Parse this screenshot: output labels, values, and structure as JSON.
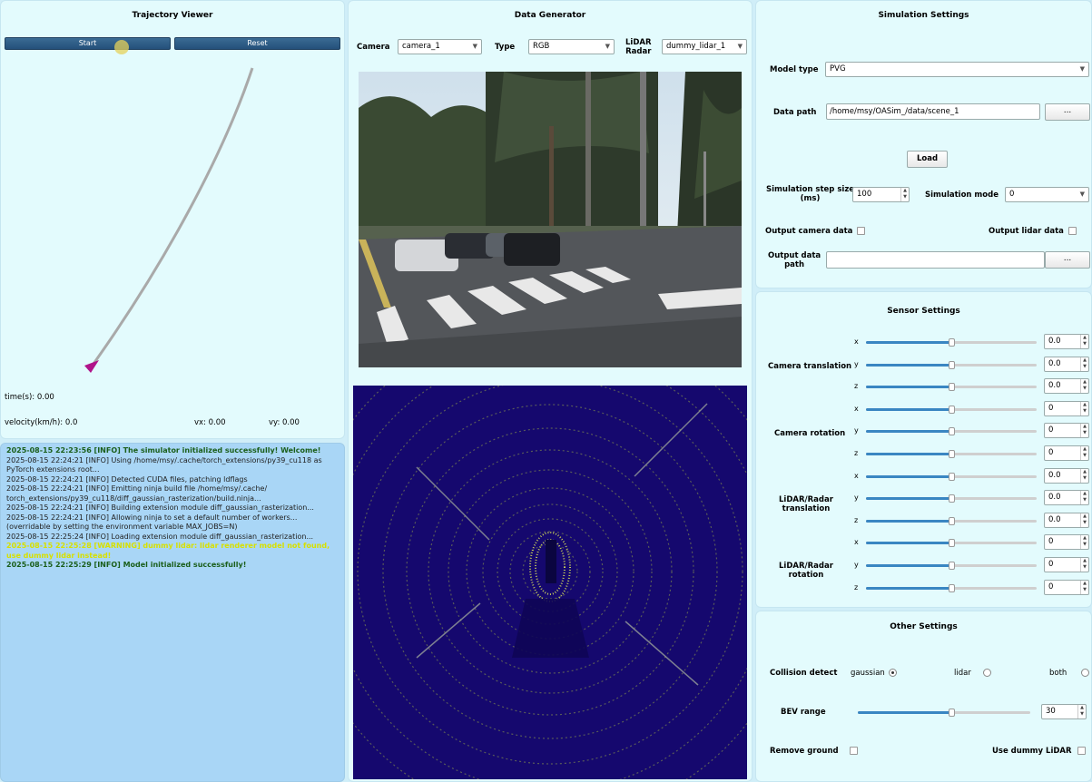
{
  "trajectory": {
    "title": "Trajectory Viewer",
    "start_label": "Start",
    "reset_label": "Reset",
    "time": "time(s): 0.00",
    "velocity": "velocity(km/h): 0.0",
    "vx": "vx: 0.00",
    "vy": "vy: 0.00"
  },
  "log": {
    "lines": [
      {
        "cls": "ok",
        "text": "2025-08-15 22:23:56 [INFO] The simulator initialized successfully! Welcome!"
      },
      {
        "cls": "",
        "text": "2025-08-15 22:24:21 [INFO] Using /home/msy/.cache/torch_extensions/py39_cu118 as PyTorch extensions root..."
      },
      {
        "cls": "",
        "text": "2025-08-15 22:24:21 [INFO] Detected CUDA files, patching ldflags"
      },
      {
        "cls": "",
        "text": "2025-08-15 22:24:21 [INFO] Emitting ninja build file /home/msy/.cache/ torch_extensions/py39_cu118/diff_gaussian_rasterization/build.ninja..."
      },
      {
        "cls": "",
        "text": "2025-08-15 22:24:21 [INFO] Building extension module diff_gaussian_rasterization..."
      },
      {
        "cls": "",
        "text": "2025-08-15 22:24:21 [INFO] Allowing ninja to set a default number of workers... (overridable by setting the environment variable MAX_JOBS=N)"
      },
      {
        "cls": "",
        "text": "2025-08-15 22:25:24 [INFO] Loading extension module diff_gaussian_rasterization..."
      },
      {
        "cls": "warn",
        "text": "2025-08-15 22:25:28 [WARNING] dummy lidar: lidar renderer model not found, use dummy lidar instead!"
      },
      {
        "cls": "ok",
        "text": "2025-08-15 22:25:29 [INFO] Model initialized successfully!"
      }
    ]
  },
  "generator": {
    "title": "Data Generator",
    "camera_label": "Camera",
    "camera_value": "camera_1",
    "type_label": "Type",
    "type_value": "RGB",
    "lidar_label_1": "LiDAR",
    "lidar_label_2": "Radar",
    "lidar_value": "dummy_lidar_1"
  },
  "sim": {
    "title": "Simulation Settings",
    "model_type_label": "Model type",
    "model_type_value": "PVG",
    "data_path_label": "Data path",
    "data_path_value": "/home/msy/OASim_/data/scene_1",
    "browse": "...",
    "load": "Load",
    "step_label_1": "Simulation step size",
    "step_label_2": "(ms)",
    "step_value": "100",
    "mode_label": "Simulation mode",
    "mode_value": "0",
    "out_cam_label": "Output camera data",
    "out_lidar_label": "Output lidar data",
    "out_path_label_1": "Output data",
    "out_path_label_2": "path",
    "out_path_value": ""
  },
  "sensor": {
    "title": "Sensor Settings",
    "groups": {
      "cam_trans": "Camera translation",
      "cam_rot": "Camera rotation",
      "lidar_trans_1": "LiDAR/Radar",
      "lidar_trans_2": "translation",
      "lidar_rot_1": "LiDAR/Radar",
      "lidar_rot_2": "rotation"
    },
    "rows": [
      {
        "axis": "x",
        "value": "0.0"
      },
      {
        "axis": "y",
        "value": "0.0"
      },
      {
        "axis": "z",
        "value": "0.0"
      },
      {
        "axis": "x",
        "value": "0"
      },
      {
        "axis": "y",
        "value": "0"
      },
      {
        "axis": "z",
        "value": "0"
      },
      {
        "axis": "x",
        "value": "0.0"
      },
      {
        "axis": "y",
        "value": "0.0"
      },
      {
        "axis": "z",
        "value": "0.0"
      },
      {
        "axis": "x",
        "value": "0"
      },
      {
        "axis": "y",
        "value": "0"
      },
      {
        "axis": "z",
        "value": "0"
      }
    ]
  },
  "other": {
    "title": "Other Settings",
    "collision_label": "Collision detect",
    "opt_gaussian": "gaussian",
    "opt_lidar": "lidar",
    "opt_both": "both",
    "bev_label": "BEV range",
    "bev_value": "30",
    "remove_ground_label": "Remove ground",
    "dummy_lidar_label": "Use dummy LiDAR"
  }
}
